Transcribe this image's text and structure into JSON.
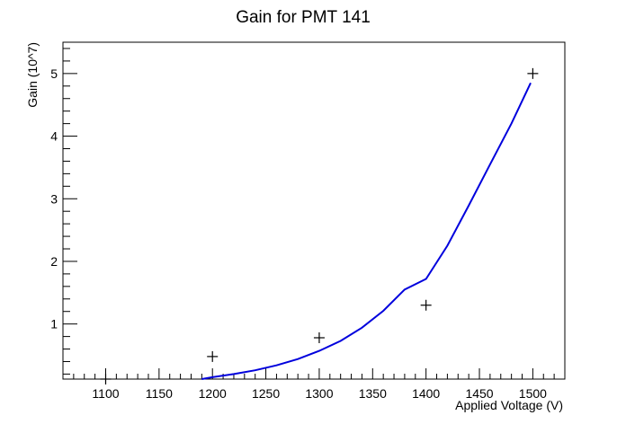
{
  "chart_data": {
    "type": "scatter",
    "title": "Gain for PMT 141",
    "xlabel": "Applied Voltage (V)",
    "ylabel": "Gain (10^7)",
    "xlim": [
      1060,
      1530
    ],
    "ylim": [
      0.12,
      5.5
    ],
    "x_ticks": [
      1100,
      1150,
      1200,
      1250,
      1300,
      1350,
      1400,
      1450,
      1500
    ],
    "y_ticks": [
      1,
      2,
      3,
      4,
      5
    ],
    "grid": false,
    "series": [
      {
        "marker": "cross",
        "color": "#000000",
        "x": [
          1100,
          1200,
          1300,
          1400,
          1500
        ],
        "y": [
          0.12,
          0.48,
          0.78,
          1.3,
          5.0
        ]
      },
      {
        "style": "line",
        "color": "#0000dd",
        "x": [
          1190,
          1200,
          1220,
          1240,
          1260,
          1280,
          1300,
          1320,
          1340,
          1360,
          1380,
          1400,
          1420,
          1440,
          1460,
          1480,
          1498
        ],
        "y": [
          0.12,
          0.15,
          0.2,
          0.26,
          0.34,
          0.44,
          0.57,
          0.73,
          0.94,
          1.21,
          1.55,
          1.72,
          2.25,
          2.89,
          3.55,
          4.2,
          4.85
        ]
      }
    ]
  }
}
